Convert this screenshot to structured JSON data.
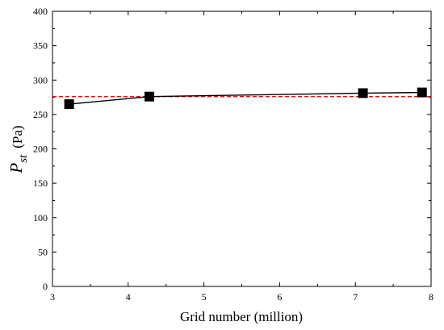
{
  "chart_data": {
    "type": "line",
    "xlabel": "Grid number (million)",
    "ylabel": {
      "symbol": "P",
      "subscript": "st",
      "unit": "(Pa)"
    },
    "xlim": [
      3,
      8
    ],
    "ylim": [
      0,
      400
    ],
    "x_ticks": [
      3,
      4,
      5,
      6,
      7,
      8
    ],
    "y_ticks": [
      0,
      50,
      100,
      150,
      200,
      250,
      300,
      350,
      400
    ],
    "grid": false,
    "series": [
      {
        "marker": "square",
        "color": "#000000",
        "x": [
          3.22,
          4.28,
          7.1,
          7.88
        ],
        "y": [
          265,
          276,
          281,
          282
        ]
      }
    ],
    "reference_line": {
      "y": 276,
      "style": "dashed",
      "color": "#ff0000"
    }
  }
}
